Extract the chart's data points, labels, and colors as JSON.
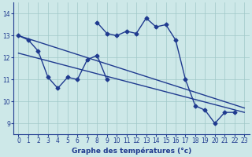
{
  "seg1_x": [
    0,
    1,
    2,
    3,
    4,
    5,
    6,
    7,
    8,
    9
  ],
  "seg1_y": [
    13.0,
    12.8,
    12.3,
    11.1,
    10.6,
    11.1,
    11.0,
    11.9,
    12.1,
    11.0
  ],
  "seg2_x": [
    8,
    9,
    10,
    11,
    12,
    13,
    14,
    15,
    16,
    17,
    18,
    19,
    20,
    21,
    22
  ],
  "seg2_y": [
    13.6,
    13.1,
    13.0,
    13.2,
    13.1,
    13.8,
    13.4,
    13.5,
    12.8,
    11.0,
    9.8,
    9.6,
    9.0,
    9.5,
    9.5
  ],
  "trend1_x": [
    0,
    23
  ],
  "trend1_y": [
    13.0,
    9.7
  ],
  "trend2_x": [
    0,
    23
  ],
  "trend2_y": [
    12.2,
    9.5
  ],
  "ylim": [
    8.5,
    14.5
  ],
  "xlim": [
    -0.5,
    23.5
  ],
  "yticks": [
    9,
    10,
    11,
    12,
    13,
    14
  ],
  "xticks": [
    0,
    1,
    2,
    3,
    4,
    5,
    6,
    7,
    8,
    9,
    10,
    11,
    12,
    13,
    14,
    15,
    16,
    17,
    18,
    19,
    20,
    21,
    22,
    23
  ],
  "xlabel": "Graphe des températures (°c)",
  "line_color": "#1f3a8f",
  "bg_color": "#cde8e8",
  "grid_color": "#a0c8c8",
  "marker": "D",
  "marker_size": 2.5,
  "line_width": 1.0
}
